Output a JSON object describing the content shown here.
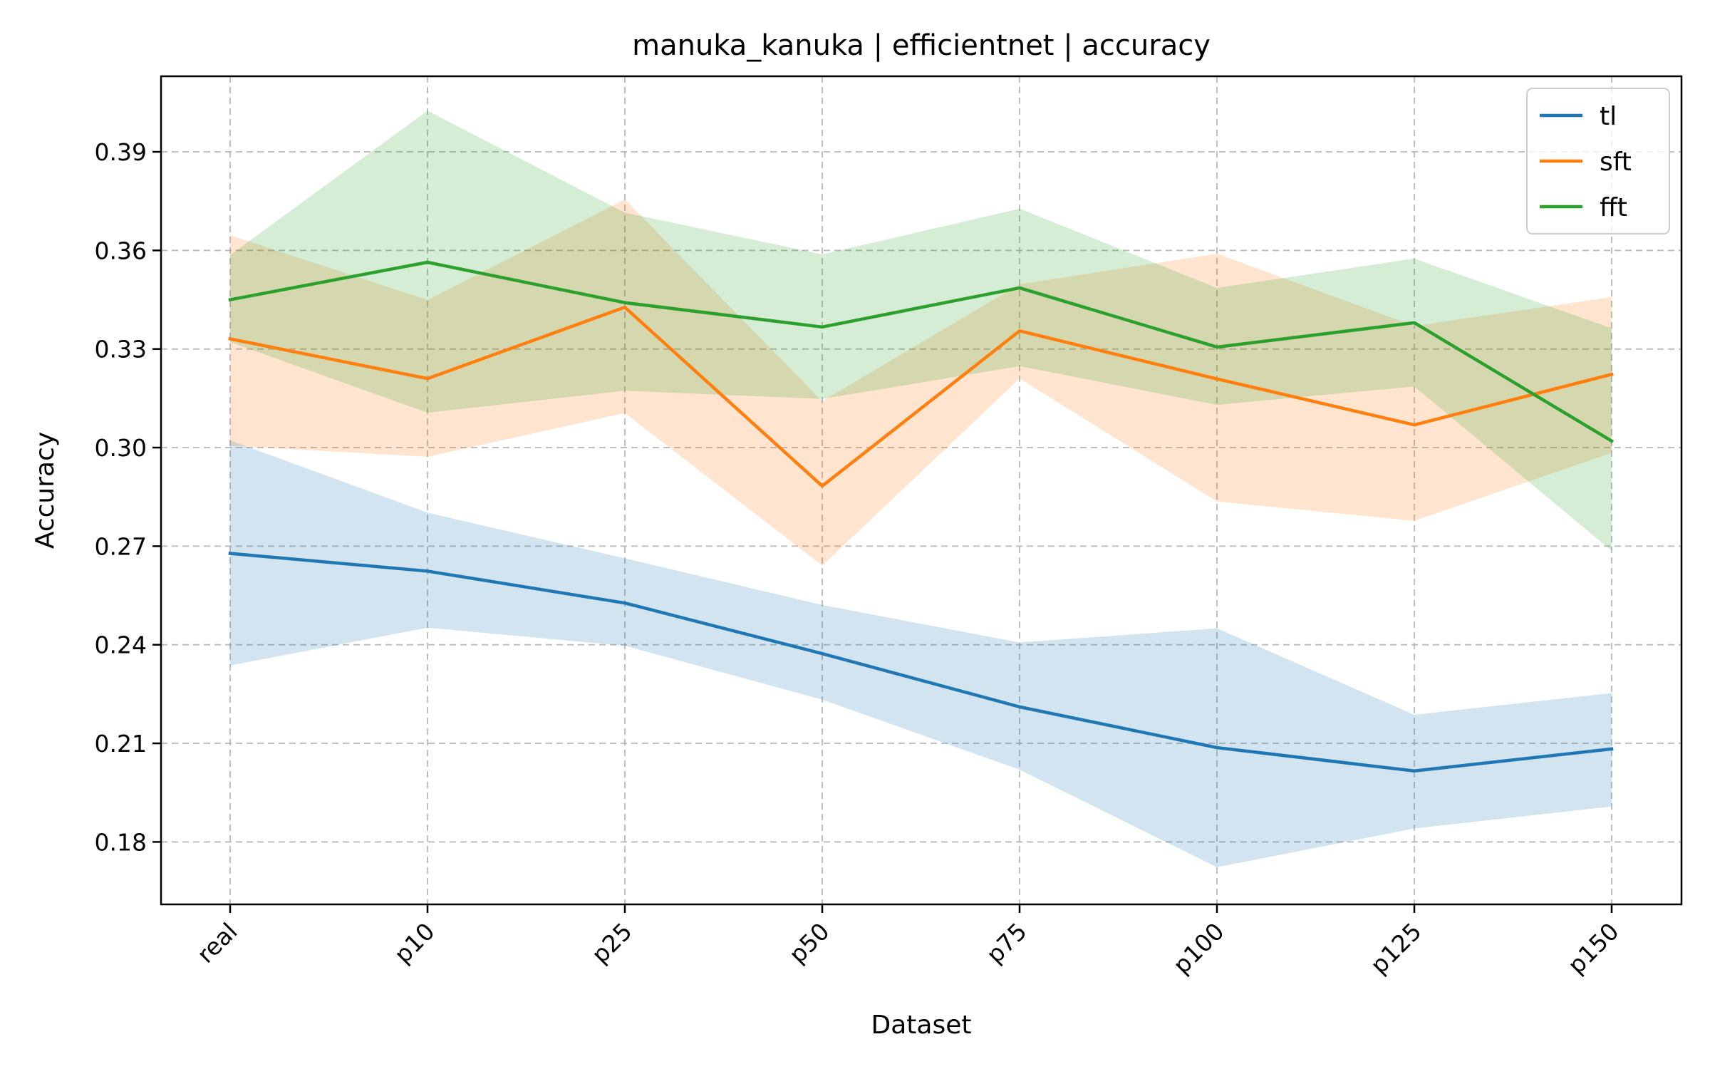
{
  "chart_data": {
    "type": "line",
    "title": "manuka_kanuka | efficientnet | accuracy",
    "xlabel": "Dataset",
    "ylabel": "Accuracy",
    "categories": [
      "real",
      "p10",
      "p25",
      "p50",
      "p75",
      "p100",
      "p125",
      "p150"
    ],
    "ylim": [
      0.161,
      0.413
    ],
    "yticks": [
      0.18,
      0.21,
      0.24,
      0.27,
      0.3,
      0.33,
      0.36,
      0.39
    ],
    "ytick_labels": [
      "0.18",
      "0.21",
      "0.24",
      "0.27",
      "0.30",
      "0.33",
      "0.36",
      "0.39"
    ],
    "grid": true,
    "legend_position": "top-right",
    "series": [
      {
        "name": "tl",
        "color": "#1f77b4",
        "values": [
          0.2678,
          0.2624,
          0.2527,
          0.2373,
          0.2211,
          0.2087,
          0.2016,
          0.2083
        ],
        "lower": [
          0.2337,
          0.2452,
          0.2397,
          0.2233,
          0.202,
          0.1723,
          0.1841,
          0.1908
        ],
        "upper": [
          0.3022,
          0.2802,
          0.2663,
          0.2521,
          0.2407,
          0.245,
          0.2187,
          0.2253
        ]
      },
      {
        "name": "sft",
        "color": "#ff7f0e",
        "values": [
          0.3331,
          0.321,
          0.3427,
          0.2883,
          0.3355,
          0.3209,
          0.3069,
          0.3223
        ],
        "lower": [
          0.3006,
          0.2972,
          0.3105,
          0.2641,
          0.321,
          0.2836,
          0.2777,
          0.2984
        ],
        "upper": [
          0.3646,
          0.3449,
          0.3755,
          0.3141,
          0.3497,
          0.359,
          0.337,
          0.3458
        ]
      },
      {
        "name": "fft",
        "color": "#2ca02c",
        "values": [
          0.345,
          0.3564,
          0.3441,
          0.3367,
          0.3486,
          0.3306,
          0.338,
          0.302
        ],
        "lower": [
          0.3321,
          0.3106,
          0.3173,
          0.3148,
          0.3248,
          0.313,
          0.3186,
          0.2686
        ],
        "upper": [
          0.3586,
          0.4025,
          0.3715,
          0.3588,
          0.3727,
          0.3486,
          0.3575,
          0.3363
        ]
      }
    ]
  }
}
